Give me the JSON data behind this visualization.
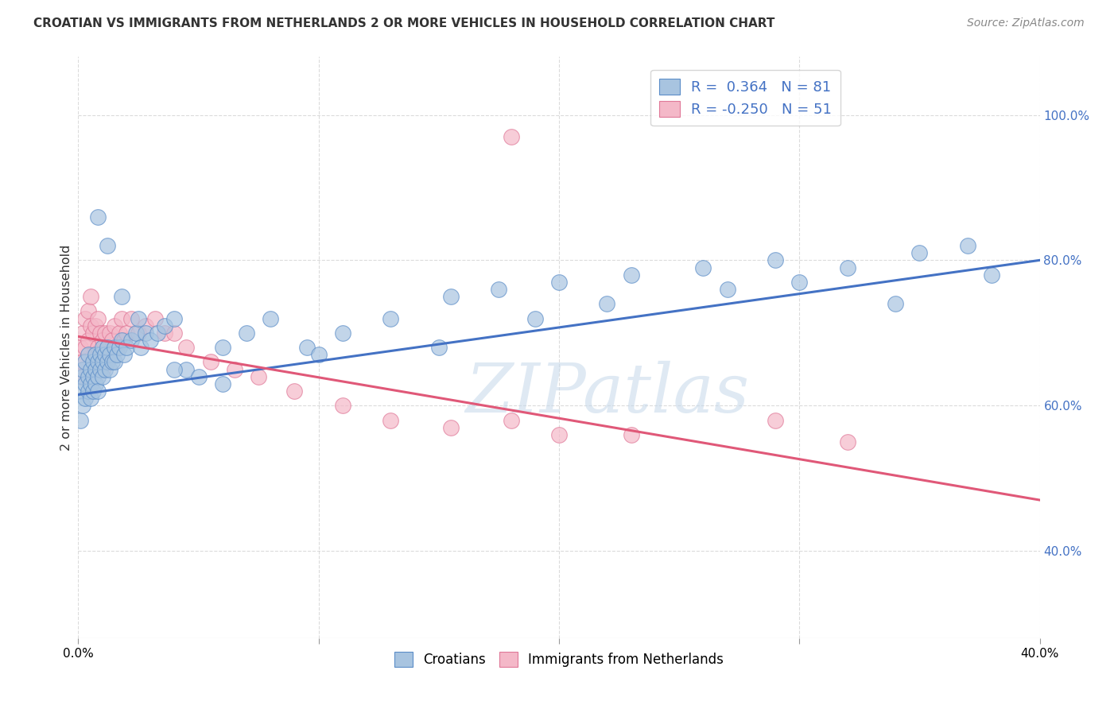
{
  "title": "CROATIAN VS IMMIGRANTS FROM NETHERLANDS 2 OR MORE VEHICLES IN HOUSEHOLD CORRELATION CHART",
  "source": "Source: ZipAtlas.com",
  "ylabel": "2 or more Vehicles in Household",
  "xmin": 0.0,
  "xmax": 0.4,
  "ymin": 0.28,
  "ymax": 1.08,
  "xtick_values": [
    0.0,
    0.1,
    0.2,
    0.3,
    0.4
  ],
  "xtick_labels": [
    "0.0%",
    "",
    "",
    "",
    "40.0%"
  ],
  "ytick_values": [
    0.4,
    0.6,
    0.8,
    1.0
  ],
  "ytick_labels": [
    "40.0%",
    "60.0%",
    "80.0%",
    "100.0%"
  ],
  "blue_fill": "#a8c4e0",
  "blue_edge": "#5b8dc8",
  "blue_line": "#4472c4",
  "pink_fill": "#f4b8c8",
  "pink_edge": "#e07898",
  "pink_line": "#e05878",
  "legend_blue_label": "Croatians",
  "legend_pink_label": "Immigrants from Netherlands",
  "R_blue": 0.364,
  "N_blue": 81,
  "R_pink": -0.25,
  "N_pink": 51,
  "blue_line_x": [
    0.0,
    0.4
  ],
  "blue_line_y": [
    0.615,
    0.8
  ],
  "pink_line_x": [
    0.0,
    0.4
  ],
  "pink_line_y": [
    0.695,
    0.47
  ],
  "watermark": "ZIPatlas",
  "background_color": "#ffffff",
  "grid_color": "#cccccc",
  "blue_x": [
    0.001,
    0.001,
    0.002,
    0.002,
    0.002,
    0.003,
    0.003,
    0.003,
    0.004,
    0.004,
    0.004,
    0.005,
    0.005,
    0.005,
    0.006,
    0.006,
    0.006,
    0.007,
    0.007,
    0.007,
    0.008,
    0.008,
    0.008,
    0.009,
    0.009,
    0.01,
    0.01,
    0.01,
    0.011,
    0.011,
    0.012,
    0.012,
    0.013,
    0.013,
    0.014,
    0.015,
    0.015,
    0.016,
    0.017,
    0.018,
    0.019,
    0.02,
    0.022,
    0.024,
    0.026,
    0.028,
    0.03,
    0.033,
    0.036,
    0.04,
    0.045,
    0.05,
    0.06,
    0.07,
    0.08,
    0.095,
    0.11,
    0.13,
    0.155,
    0.175,
    0.2,
    0.23,
    0.26,
    0.29,
    0.32,
    0.35,
    0.37,
    0.008,
    0.012,
    0.018,
    0.025,
    0.04,
    0.06,
    0.1,
    0.15,
    0.19,
    0.22,
    0.27,
    0.3,
    0.34,
    0.38
  ],
  "blue_y": [
    0.62,
    0.58,
    0.64,
    0.6,
    0.65,
    0.63,
    0.61,
    0.66,
    0.64,
    0.62,
    0.67,
    0.63,
    0.65,
    0.61,
    0.64,
    0.66,
    0.62,
    0.65,
    0.63,
    0.67,
    0.64,
    0.66,
    0.62,
    0.65,
    0.67,
    0.66,
    0.64,
    0.68,
    0.65,
    0.67,
    0.66,
    0.68,
    0.65,
    0.67,
    0.66,
    0.68,
    0.66,
    0.67,
    0.68,
    0.69,
    0.67,
    0.68,
    0.69,
    0.7,
    0.68,
    0.7,
    0.69,
    0.7,
    0.71,
    0.72,
    0.65,
    0.64,
    0.68,
    0.7,
    0.72,
    0.68,
    0.7,
    0.72,
    0.75,
    0.76,
    0.77,
    0.78,
    0.79,
    0.8,
    0.79,
    0.81,
    0.82,
    0.86,
    0.82,
    0.75,
    0.72,
    0.65,
    0.63,
    0.67,
    0.68,
    0.72,
    0.74,
    0.76,
    0.77,
    0.74,
    0.78
  ],
  "pink_x": [
    0.001,
    0.001,
    0.002,
    0.002,
    0.003,
    0.003,
    0.004,
    0.004,
    0.005,
    0.005,
    0.006,
    0.006,
    0.007,
    0.007,
    0.008,
    0.008,
    0.009,
    0.009,
    0.01,
    0.01,
    0.011,
    0.011,
    0.012,
    0.013,
    0.014,
    0.015,
    0.016,
    0.017,
    0.018,
    0.019,
    0.02,
    0.022,
    0.025,
    0.028,
    0.032,
    0.036,
    0.04,
    0.045,
    0.055,
    0.065,
    0.075,
    0.09,
    0.11,
    0.13,
    0.155,
    0.18,
    0.2,
    0.23,
    0.29,
    0.32,
    0.18
  ],
  "pink_y": [
    0.68,
    0.64,
    0.7,
    0.66,
    0.72,
    0.68,
    0.73,
    0.69,
    0.75,
    0.71,
    0.7,
    0.66,
    0.71,
    0.67,
    0.72,
    0.68,
    0.7,
    0.66,
    0.69,
    0.65,
    0.7,
    0.66,
    0.68,
    0.7,
    0.69,
    0.71,
    0.68,
    0.7,
    0.72,
    0.69,
    0.7,
    0.72,
    0.7,
    0.71,
    0.72,
    0.7,
    0.7,
    0.68,
    0.66,
    0.65,
    0.64,
    0.62,
    0.6,
    0.58,
    0.57,
    0.58,
    0.56,
    0.56,
    0.58,
    0.55,
    0.97
  ]
}
